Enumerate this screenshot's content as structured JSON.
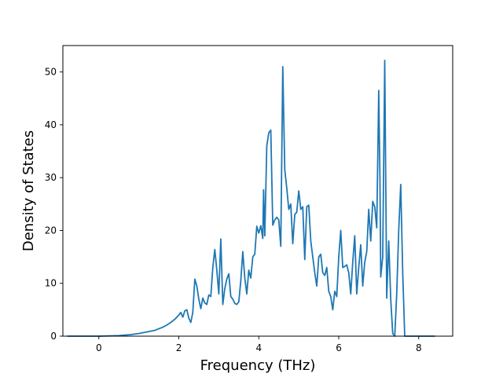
{
  "chart_data": {
    "type": "line",
    "title": "",
    "xlabel": "Frequency (THz)",
    "ylabel": "Density of States",
    "xlim": [
      -0.9,
      8.85
    ],
    "ylim": [
      0,
      55
    ],
    "xticks": [
      0,
      2,
      4,
      6,
      8
    ],
    "yticks": [
      0,
      10,
      20,
      30,
      40,
      50
    ],
    "grid": false,
    "legend": "none",
    "color": "#1f77b4",
    "series": [
      {
        "x": [
          -0.78,
          -0.5,
          0.0,
          0.5,
          0.8,
          1.0,
          1.2,
          1.4,
          1.5,
          1.6,
          1.7,
          1.8,
          1.9,
          2.0,
          2.05,
          2.1,
          2.15,
          2.2,
          2.25,
          2.3,
          2.35,
          2.4,
          2.45,
          2.5,
          2.55,
          2.6,
          2.65,
          2.7,
          2.75,
          2.8,
          2.85,
          2.9,
          2.95,
          3.0,
          3.05,
          3.1,
          3.15,
          3.2,
          3.25,
          3.3,
          3.35,
          3.4,
          3.45,
          3.5,
          3.55,
          3.6,
          3.65,
          3.7,
          3.75,
          3.8,
          3.85,
          3.9,
          3.95,
          4.0,
          4.05,
          4.1,
          4.12,
          4.15,
          4.2,
          4.25,
          4.3,
          4.35,
          4.4,
          4.45,
          4.5,
          4.55,
          4.6,
          4.65,
          4.7,
          4.75,
          4.8,
          4.85,
          4.9,
          4.95,
          5.0,
          5.05,
          5.1,
          5.15,
          5.2,
          5.25,
          5.3,
          5.35,
          5.4,
          5.45,
          5.5,
          5.55,
          5.6,
          5.65,
          5.7,
          5.75,
          5.8,
          5.85,
          5.9,
          5.95,
          6.0,
          6.05,
          6.1,
          6.15,
          6.2,
          6.25,
          6.3,
          6.35,
          6.4,
          6.45,
          6.5,
          6.55,
          6.6,
          6.65,
          6.7,
          6.75,
          6.8,
          6.85,
          6.9,
          6.95,
          7.0,
          7.03,
          7.05,
          7.1,
          7.15,
          7.2,
          7.25,
          7.3,
          7.35,
          7.4,
          7.45,
          7.5,
          7.55,
          7.6,
          7.65,
          7.7,
          8.0,
          8.4
        ],
        "y": [
          0,
          0,
          0,
          0.1,
          0.3,
          0.5,
          0.8,
          1.1,
          1.4,
          1.7,
          2.1,
          2.6,
          3.2,
          4.0,
          4.5,
          3.6,
          4.8,
          5.0,
          3.4,
          2.6,
          4.5,
          10.8,
          9.5,
          7.0,
          5.2,
          7.2,
          6.3,
          6.0,
          7.8,
          7.5,
          13.0,
          16.4,
          12.5,
          8.0,
          18.4,
          6.0,
          9.0,
          10.8,
          11.8,
          7.5,
          7.0,
          6.2,
          6.0,
          6.5,
          10.5,
          16.0,
          11.0,
          8.0,
          12.5,
          11.0,
          15.0,
          15.5,
          20.8,
          19.5,
          20.9,
          18.5,
          27.7,
          19.0,
          36.0,
          38.5,
          39.0,
          21.0,
          22.0,
          22.5,
          22.0,
          17.0,
          51.0,
          31.5,
          28.0,
          24.0,
          25.0,
          17.5,
          23.0,
          23.5,
          27.5,
          24.0,
          24.5,
          14.5,
          24.5,
          24.8,
          18.0,
          15.0,
          12.0,
          9.5,
          15.0,
          15.5,
          12.0,
          11.5,
          13.0,
          8.5,
          7.5,
          5.0,
          8.5,
          7.5,
          15.0,
          20.0,
          13.0,
          13.2,
          13.5,
          12.0,
          8.0,
          14.0,
          19.0,
          8.0,
          13.0,
          17.3,
          9.5,
          14.0,
          16.0,
          24.0,
          18.0,
          25.5,
          24.5,
          20.5,
          46.5,
          30.0,
          11.2,
          15.0,
          52.2,
          7.2,
          18.0,
          7.0,
          0.5,
          0,
          8.0,
          20.0,
          28.7,
          12.0,
          0,
          0,
          0,
          0
        ]
      }
    ]
  }
}
